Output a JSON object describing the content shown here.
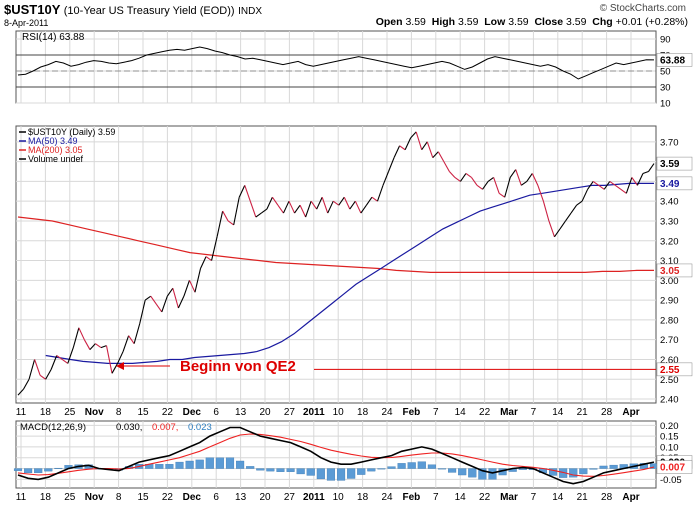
{
  "header": {
    "symbol": "$UST10Y",
    "description": "(10-Year US Treasury Yield (EOD))",
    "exchange": "INDX",
    "brand": "© StockCharts.com",
    "date": "8-Apr-2011",
    "open_label": "Open",
    "open": "3.59",
    "high_label": "High",
    "high": "3.59",
    "low_label": "Low",
    "low": "3.59",
    "close_label": "Close",
    "close": "3.59",
    "chg_label": "Chg",
    "chg": "+0.01 (+0.28%)"
  },
  "colors": {
    "price": "#000000",
    "ma50": "#1a1aa0",
    "ma200": "#dd2222",
    "down": "#cc2244",
    "annotation": "#dd0000",
    "histogram": "#5b9bd5",
    "signal": "#ee2222",
    "grid": "#d8d8d8"
  },
  "x_axis": {
    "labels": [
      "11",
      "18",
      "25",
      "Nov",
      "8",
      "15",
      "22",
      "Dec",
      "6",
      "13",
      "20",
      "27",
      "2011",
      "10",
      "18",
      "24",
      "Feb",
      "7",
      "14",
      "22",
      "Mar",
      "7",
      "14",
      "21",
      "28",
      "Apr"
    ],
    "bold": [
      "Nov",
      "Dec",
      "2011",
      "Feb",
      "Mar",
      "Apr"
    ]
  },
  "chart_data": [
    {
      "type": "line",
      "name": "rsi",
      "legend": "RSI(14) 63.88",
      "ylim": [
        10,
        100
      ],
      "ticks": [
        "90",
        "70",
        "50",
        "30",
        "10"
      ],
      "last_label": "63.88",
      "values": [
        45,
        46,
        50,
        55,
        58,
        62,
        60,
        56,
        58,
        61,
        63,
        62,
        60,
        59,
        61,
        63,
        66,
        70,
        72,
        74,
        76,
        77,
        76,
        78,
        80,
        78,
        75,
        73,
        70,
        68,
        65,
        66,
        64,
        62,
        60,
        58,
        60,
        62,
        58,
        56,
        58,
        60,
        62,
        64,
        66,
        68,
        66,
        64,
        62,
        60,
        58,
        56,
        54,
        56,
        58,
        60,
        62,
        60,
        56,
        52,
        55,
        60,
        65,
        68,
        66,
        64,
        62,
        60,
        58,
        56,
        58,
        55,
        50,
        46,
        40,
        44,
        48,
        52,
        56,
        60,
        58,
        60,
        62,
        64,
        63.88
      ]
    },
    {
      "type": "line",
      "name": "price",
      "legend": [
        "$UST10Y (Daily) 3.59",
        "MA(50) 3.49",
        "MA(200) 3.05",
        "Volume undef"
      ],
      "ylim": [
        2.38,
        3.78
      ],
      "ticks": [
        "3.70",
        "3.60",
        "3.50",
        "3.40",
        "3.30",
        "3.20",
        "3.10",
        "3.00",
        "2.90",
        "2.80",
        "2.70",
        "2.60",
        "2.50",
        "2.40"
      ],
      "last_labels": {
        "price": "3.59",
        "ma50": "3.49",
        "ma200": "3.05",
        "line": "2.55"
      },
      "values": [
        2.42,
        2.45,
        2.5,
        2.6,
        2.52,
        2.5,
        2.55,
        2.62,
        2.6,
        2.58,
        2.66,
        2.76,
        2.7,
        2.65,
        2.68,
        2.66,
        2.67,
        2.53,
        2.58,
        2.64,
        2.72,
        2.68,
        2.78,
        2.9,
        2.92,
        2.88,
        2.84,
        2.92,
        2.96,
        2.86,
        2.92,
        3.0,
        2.94,
        3.06,
        3.12,
        3.1,
        3.22,
        3.35,
        3.3,
        3.28,
        3.42,
        3.48,
        3.4,
        3.32,
        3.34,
        3.36,
        3.42,
        3.38,
        3.34,
        3.4,
        3.34,
        3.38,
        3.32,
        3.4,
        3.36,
        3.42,
        3.34,
        3.4,
        3.38,
        3.42,
        3.36,
        3.4,
        3.34,
        3.38,
        3.42,
        3.4,
        3.48,
        3.55,
        3.62,
        3.68,
        3.66,
        3.72,
        3.75,
        3.66,
        3.7,
        3.62,
        3.65,
        3.6,
        3.55,
        3.52,
        3.5,
        3.54,
        3.52,
        3.48,
        3.46,
        3.5,
        3.52,
        3.44,
        3.42,
        3.52,
        3.56,
        3.48,
        3.5,
        3.54,
        3.48,
        3.4,
        3.3,
        3.22,
        3.26,
        3.3,
        3.34,
        3.38,
        3.4,
        3.46,
        3.5,
        3.48,
        3.46,
        3.5,
        3.48,
        3.46,
        3.44,
        3.52,
        3.48,
        3.54,
        3.55,
        3.59
      ],
      "ma50": [
        2.62,
        2.61,
        2.6,
        2.59,
        2.585,
        2.58,
        2.58,
        2.58,
        2.585,
        2.59,
        2.6,
        2.6,
        2.61,
        2.615,
        2.62,
        2.625,
        2.63,
        2.64,
        2.66,
        2.69,
        2.73,
        2.78,
        2.83,
        2.88,
        2.93,
        2.98,
        3.02,
        3.06,
        3.1,
        3.14,
        3.18,
        3.22,
        3.26,
        3.29,
        3.32,
        3.35,
        3.37,
        3.39,
        3.41,
        3.43,
        3.44,
        3.45,
        3.46,
        3.47,
        3.48,
        3.48,
        3.485,
        3.49,
        3.49,
        3.49
      ],
      "ma200": [
        3.32,
        3.31,
        3.3,
        3.28,
        3.26,
        3.24,
        3.22,
        3.2,
        3.18,
        3.16,
        3.14,
        3.13,
        3.12,
        3.11,
        3.1,
        3.09,
        3.085,
        3.08,
        3.075,
        3.07,
        3.065,
        3.06,
        3.05,
        3.045,
        3.04,
        3.04,
        3.04,
        3.04,
        3.04,
        3.04,
        3.04,
        3.04,
        3.04,
        3.04,
        3.045,
        3.045,
        3.05,
        3.05
      ]
    },
    {
      "type": "bar",
      "name": "macd",
      "legend": [
        "MACD(12,26,9)",
        "0.030",
        "0.007",
        "0.023"
      ],
      "ylim": [
        -0.09,
        0.22
      ],
      "ticks": [
        "0.20",
        "0.15",
        "0.10",
        "0.05",
        "0.00",
        "-0.05"
      ],
      "last_labels": {
        "macd": "0.030",
        "signal": "0.007"
      },
      "macd": [
        -0.03,
        -0.045,
        -0.05,
        -0.04,
        -0.02,
        0.0,
        0.01,
        0.015,
        0.0,
        -0.005,
        -0.01,
        0.01,
        0.03,
        0.04,
        0.05,
        0.06,
        0.08,
        0.1,
        0.12,
        0.15,
        0.17,
        0.19,
        0.19,
        0.17,
        0.15,
        0.14,
        0.13,
        0.12,
        0.1,
        0.08,
        0.05,
        0.03,
        0.02,
        0.02,
        0.03,
        0.04,
        0.05,
        0.06,
        0.08,
        0.09,
        0.1,
        0.09,
        0.07,
        0.05,
        0.03,
        0.01,
        -0.01,
        -0.02,
        -0.01,
        0.0,
        0.005,
        0.0,
        -0.02,
        -0.04,
        -0.06,
        -0.07,
        -0.06,
        -0.04,
        -0.02,
        -0.01,
        0.0,
        0.01,
        0.02,
        0.03
      ],
      "signal": [
        -0.02,
        -0.025,
        -0.03,
        -0.028,
        -0.022,
        -0.015,
        -0.008,
        -0.003,
        0.0,
        0.0,
        -0.002,
        0.0,
        0.01,
        0.02,
        0.03,
        0.04,
        0.05,
        0.065,
        0.08,
        0.1,
        0.12,
        0.14,
        0.155,
        0.16,
        0.158,
        0.152,
        0.145,
        0.135,
        0.125,
        0.112,
        0.098,
        0.085,
        0.075,
        0.066,
        0.058,
        0.052,
        0.05,
        0.051,
        0.056,
        0.062,
        0.068,
        0.072,
        0.072,
        0.068,
        0.06,
        0.05,
        0.04,
        0.03,
        0.02,
        0.014,
        0.01,
        0.006,
        0.0,
        -0.008,
        -0.018,
        -0.03,
        -0.035,
        -0.036,
        -0.032,
        -0.026,
        -0.019,
        -0.012,
        -0.004,
        0.007
      ],
      "histogram": [
        -0.01,
        -0.02,
        -0.02,
        -0.012,
        0.002,
        0.015,
        0.018,
        0.018,
        0.0,
        -0.005,
        -0.008,
        0.01,
        0.02,
        0.02,
        0.02,
        0.02,
        0.03,
        0.035,
        0.04,
        0.05,
        0.05,
        0.05,
        0.035,
        0.01,
        -0.008,
        -0.012,
        -0.015,
        -0.015,
        -0.025,
        -0.032,
        -0.048,
        -0.055,
        -0.055,
        -0.046,
        -0.028,
        -0.012,
        0.0,
        0.009,
        0.024,
        0.028,
        0.032,
        0.018,
        -0.002,
        -0.018,
        -0.03,
        -0.04,
        -0.05,
        -0.05,
        -0.03,
        -0.014,
        -0.005,
        -0.006,
        -0.02,
        -0.032,
        -0.042,
        -0.04,
        -0.025,
        -0.004,
        0.012,
        0.016,
        0.019,
        0.022,
        0.024,
        0.023
      ]
    }
  ],
  "annotation": {
    "text": "Beginn von QE2",
    "level": 2.55
  }
}
